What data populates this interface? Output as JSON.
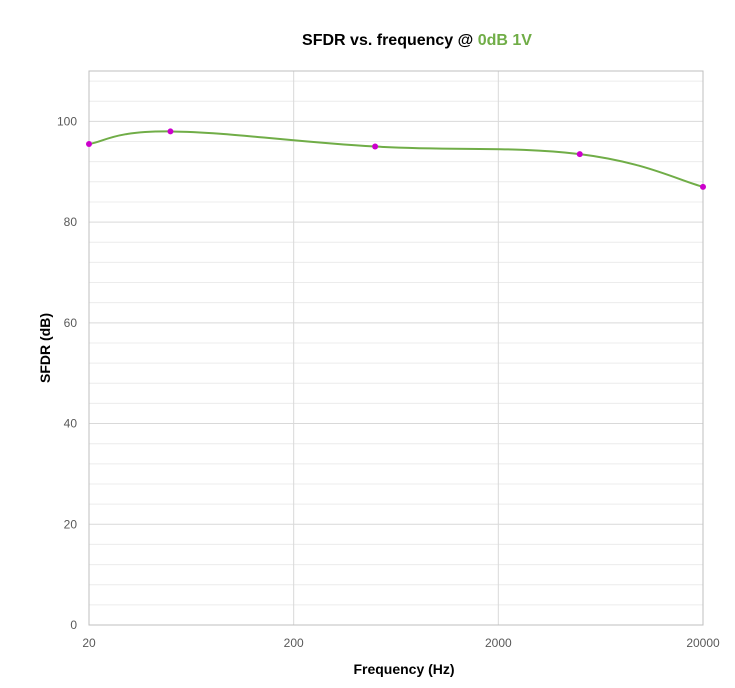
{
  "chart_data": {
    "type": "line",
    "title_prefix": "SFDR vs. frequency @ ",
    "title_highlight": "0dB 1V",
    "title_highlight_color": "#70ad47",
    "xlabel": "Frequency (Hz)",
    "ylabel": "SFDR (dB)",
    "x_scale": "log",
    "xlim": [
      20,
      20000
    ],
    "ylim": [
      0,
      110
    ],
    "x_ticks": [
      20,
      200,
      2000,
      20000
    ],
    "x_tick_labels": [
      "20",
      "200",
      "2000",
      "20000"
    ],
    "y_ticks": [
      0,
      20,
      40,
      60,
      80,
      100
    ],
    "y_tick_labels": [
      "0",
      "20",
      "40",
      "60",
      "80",
      "100"
    ],
    "grid": true,
    "legend": "none",
    "series": [
      {
        "color": "#70ad47",
        "marker_color": "#cc00cc",
        "x": [
          20,
          50,
          500,
          5000,
          20000
        ],
        "y": [
          95.5,
          98,
          95,
          93.5,
          87
        ]
      }
    ]
  }
}
